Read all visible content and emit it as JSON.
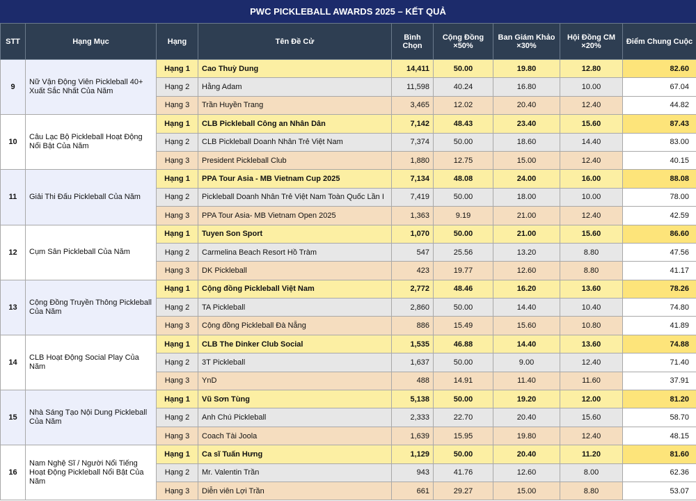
{
  "title": "PWC PICKLEBALL AWARDS 2025 – KẾT QUẢ",
  "header": [
    "STT",
    "Hạng Mục",
    "Hạng",
    "Tên Đề Cử",
    "Bình Chọn",
    "Cộng Đồng ×50%",
    "Ban Giám Khảo ×30%",
    "Hội Đồng CM ×20%",
    "Điểm Chung Cuộc"
  ],
  "groups": [
    {
      "stt": "9",
      "category": "Nữ Vận Động Viên Pickleball 40+ Xuất Sắc Nhất Của Năm",
      "rows": [
        [
          "Hạng 1",
          "Cao Thuỳ Dung",
          "14,411",
          "50.00",
          "19.80",
          "12.80",
          "82.60"
        ],
        [
          "Hạng 2",
          "Hằng Adam",
          "11,598",
          "40.24",
          "16.80",
          "10.00",
          "67.04"
        ],
        [
          "Hạng 3",
          "Trần Huyền Trang",
          "3,465",
          "12.02",
          "20.40",
          "12.40",
          "44.82"
        ]
      ]
    },
    {
      "stt": "10",
      "category": "Câu Lạc Bộ Pickleball Hoạt Động Nổi Bật Của Năm",
      "rows": [
        [
          "Hạng 1",
          "CLB Pickleball Công an Nhân Dân",
          "7,142",
          "48.43",
          "23.40",
          "15.60",
          "87.43"
        ],
        [
          "Hạng 2",
          "CLB Pickleball Doanh Nhân Trẻ Việt Nam",
          "7,374",
          "50.00",
          "18.60",
          "14.40",
          "83.00"
        ],
        [
          "Hạng 3",
          "President Pickleball Club",
          "1,880",
          "12.75",
          "15.00",
          "12.40",
          "40.15"
        ]
      ]
    },
    {
      "stt": "11",
      "category": "Giải Thi Đấu Pickleball Của Năm",
      "rows": [
        [
          "Hạng 1",
          "PPA Tour Asia - MB Vietnam Cup 2025",
          "7,134",
          "48.08",
          "24.00",
          "16.00",
          "88.08"
        ],
        [
          "Hạng 2",
          "Pickleball Doanh Nhân Trẻ Việt Nam Toàn Quốc Lần I",
          "7,419",
          "50.00",
          "18.00",
          "10.00",
          "78.00"
        ],
        [
          "Hạng 3",
          "PPA Tour Asia- MB Vietnam Open 2025",
          "1,363",
          "9.19",
          "21.00",
          "12.40",
          "42.59"
        ]
      ]
    },
    {
      "stt": "12",
      "category": "Cụm Sân Pickleball Của Năm",
      "rows": [
        [
          "Hạng 1",
          "Tuyen Son Sport",
          "1,070",
          "50.00",
          "21.00",
          "15.60",
          "86.60"
        ],
        [
          "Hạng 2",
          "Carmelina Beach Resort Hồ Tràm",
          "547",
          "25.56",
          "13.20",
          "8.80",
          "47.56"
        ],
        [
          "Hạng 3",
          "DK Pickleball",
          "423",
          "19.77",
          "12.60",
          "8.80",
          "41.17"
        ]
      ]
    },
    {
      "stt": "13",
      "category": "Cộng Đồng Truyền Thông Pickleball Của Năm",
      "rows": [
        [
          "Hạng 1",
          "Cộng đồng Pickleball Việt Nam",
          "2,772",
          "48.46",
          "16.20",
          "13.60",
          "78.26"
        ],
        [
          "Hạng 2",
          "TA Pickleball",
          "2,860",
          "50.00",
          "14.40",
          "10.40",
          "74.80"
        ],
        [
          "Hạng 3",
          "Cộng đồng Pickleball Đà Nẵng",
          "886",
          "15.49",
          "15.60",
          "10.80",
          "41.89"
        ]
      ]
    },
    {
      "stt": "14",
      "category": "CLB Hoạt Động Social Play Của Năm",
      "rows": [
        [
          "Hạng 1",
          "CLB The Dinker Club Social",
          "1,535",
          "46.88",
          "14.40",
          "13.60",
          "74.88"
        ],
        [
          "Hạng 2",
          "3T Pickleball",
          "1,637",
          "50.00",
          "9.00",
          "12.40",
          "71.40"
        ],
        [
          "Hạng 3",
          "YnD",
          "488",
          "14.91",
          "11.40",
          "11.60",
          "37.91"
        ]
      ]
    },
    {
      "stt": "15",
      "category": "Nhà Sáng Tạo Nội Dung Pickleball Của Năm",
      "rows": [
        [
          "Hạng 1",
          "Vũ Sơn Tùng",
          "5,138",
          "50.00",
          "19.20",
          "12.00",
          "81.20"
        ],
        [
          "Hạng 2",
          "Anh Chú Pickleball",
          "2,333",
          "22.70",
          "20.40",
          "15.60",
          "58.70"
        ],
        [
          "Hạng 3",
          "Coach Tài Joola",
          "1,639",
          "15.95",
          "19.80",
          "12.40",
          "48.15"
        ]
      ]
    },
    {
      "stt": "16",
      "category": "Nam Nghệ Sĩ / Người Nổi Tiếng Hoạt Động Pickleball Nổi Bật Của Năm",
      "rows": [
        [
          "Hạng 1",
          "Ca sĩ Tuấn Hưng",
          "1,129",
          "50.00",
          "20.40",
          "11.20",
          "81.60"
        ],
        [
          "Hạng 2",
          "Mr. Valentin Trần",
          "943",
          "41.76",
          "12.60",
          "8.00",
          "62.36"
        ],
        [
          "Hạng 3",
          "Diễn viên Lợi Trần",
          "661",
          "29.27",
          "15.00",
          "8.80",
          "53.07"
        ]
      ]
    }
  ]
}
